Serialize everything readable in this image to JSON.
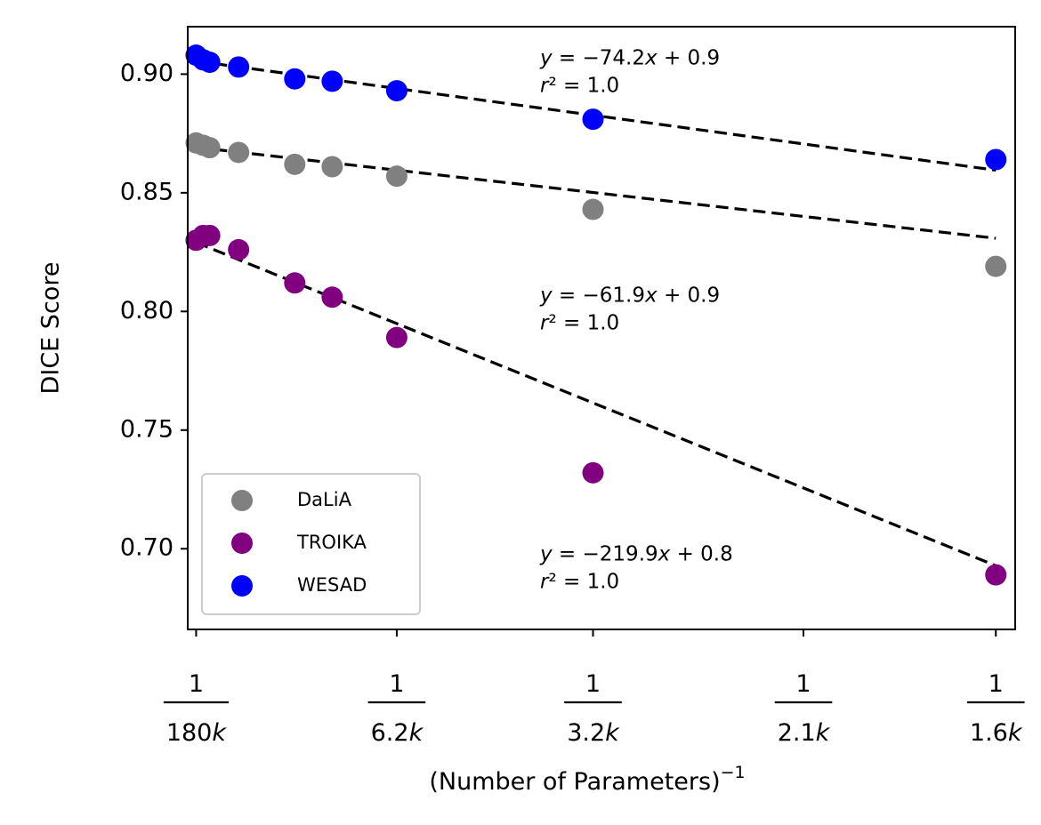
{
  "chart_data": {
    "type": "scatter",
    "xlabel": "(Number of Parameters)",
    "xlabel_exponent": "−1",
    "ylabel": "DICE Score",
    "ylim": [
      0.666,
      0.92
    ],
    "xlim": [
      -9e-07,
      0.00064
    ],
    "yticks": [
      "0.70",
      "0.75",
      "0.80",
      "0.85",
      "0.90"
    ],
    "ytick_values": [
      0.7,
      0.75,
      0.8,
      0.85,
      0.9
    ],
    "xticks": [
      {
        "num": "1",
        "den": "180k",
        "value": 5.6e-06
      },
      {
        "num": "1",
        "den": "6.2k",
        "value": 0.000161
      },
      {
        "num": "1",
        "den": "3.2k",
        "value": 0.000313
      },
      {
        "num": "1",
        "den": "2.1k",
        "value": 0.000476
      },
      {
        "num": "1",
        "den": "1.6k",
        "value": 0.000625
      }
    ],
    "grid": false,
    "legend_position": "lower-left",
    "series": [
      {
        "name": "DaLiA",
        "color": "#808080",
        "x": [
          5.6e-06,
          1.11e-05,
          1.61e-05,
          3.85e-05,
          8.2e-05,
          0.000111,
          0.000161,
          0.000313,
          0.000625
        ],
        "y": [
          0.871,
          0.87,
          0.869,
          0.867,
          0.862,
          0.861,
          0.857,
          0.843,
          0.819
        ],
        "fit": {
          "slope": -61.9,
          "intercept": 0.8695,
          "equation": "y = −61.9x + 0.9",
          "r2": "r² = 1.0"
        }
      },
      {
        "name": "TROIKA",
        "color": "#800080",
        "x": [
          5.6e-06,
          1.11e-05,
          1.61e-05,
          3.85e-05,
          8.2e-05,
          0.000111,
          0.000161,
          0.000313,
          0.000625
        ],
        "y": [
          0.83,
          0.832,
          0.832,
          0.826,
          0.812,
          0.806,
          0.789,
          0.732,
          0.689
        ],
        "fit": {
          "slope": -219.9,
          "intercept": 0.8303,
          "equation": "y = −219.9x + 0.8",
          "r2": "r² = 1.0"
        }
      },
      {
        "name": "WESAD",
        "color": "#0000ff",
        "x": [
          5.6e-06,
          1.11e-05,
          1.61e-05,
          3.85e-05,
          8.2e-05,
          0.000111,
          0.000161,
          0.000313,
          0.000625
        ],
        "y": [
          0.908,
          0.906,
          0.905,
          0.903,
          0.898,
          0.897,
          0.893,
          0.881,
          0.864
        ],
        "fit": {
          "slope": -74.2,
          "intercept": 0.9059,
          "equation": "y = −74.2x + 0.9",
          "r2": "r² = 1.0"
        }
      }
    ],
    "annotations": [
      {
        "series": "WESAD",
        "line1": "y = −74.2x + 0.9",
        "line2": "r² = 1.0",
        "x": 0.000272,
        "y": 0.904
      },
      {
        "series": "DaLiA",
        "line1": "y = −61.9x + 0.9",
        "line2": "r² = 1.0",
        "x": 0.000272,
        "y": 0.804
      },
      {
        "series": "TROIKA",
        "line1": "y = −219.9x + 0.8",
        "line2": "r² = 1.0",
        "x": 0.000272,
        "y": 0.695
      }
    ]
  }
}
